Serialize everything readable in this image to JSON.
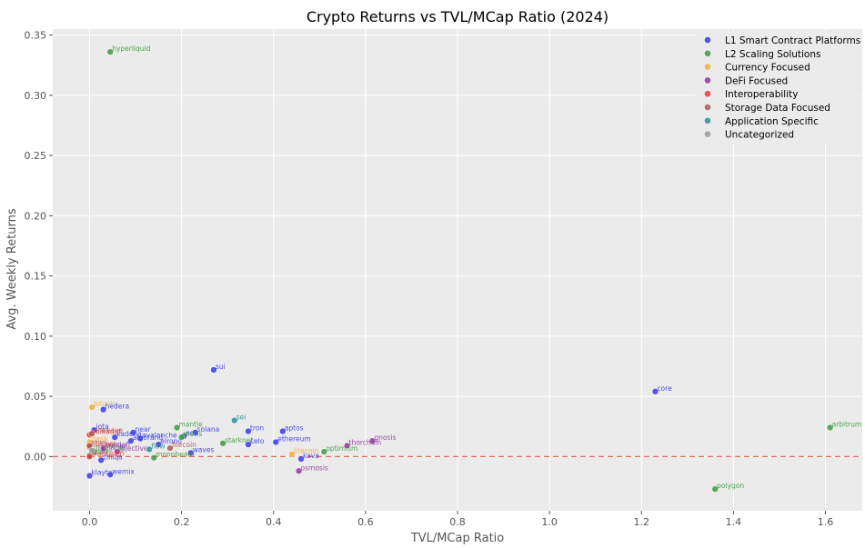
{
  "chart_data": {
    "type": "scatter",
    "title": "Crypto Returns vs TVL/MCap Ratio (2024)",
    "xlabel": "TVL/MCap Ratio",
    "ylabel": "Avg. Weekly Returns",
    "xlim": [
      -0.08,
      1.68
    ],
    "ylim": [
      -0.045,
      0.355
    ],
    "xticks": [
      "0.0",
      "0.2",
      "0.4",
      "0.6",
      "0.8",
      "1.0",
      "1.2",
      "1.4",
      "1.6"
    ],
    "xtick_values": [
      0,
      0.2,
      0.4,
      0.6,
      0.8,
      1.0,
      1.2,
      1.4,
      1.6
    ],
    "yticks": [
      "0.00",
      "0.05",
      "0.10",
      "0.15",
      "0.20",
      "0.25",
      "0.30",
      "0.35"
    ],
    "ytick_values": [
      0,
      0.05,
      0.1,
      0.15,
      0.2,
      0.25,
      0.3,
      0.35
    ],
    "grid": true,
    "legend_position": "top-right",
    "reference_line": {
      "y": 0,
      "style": "dashed",
      "color": "#e8685e"
    },
    "series": [
      {
        "name": "L1 Smart Contract Platforms",
        "color": "#3a3ae8",
        "points": [
          {
            "label": "sui",
            "x": 0.27,
            "y": 0.072
          },
          {
            "label": "core",
            "x": 1.23,
            "y": 0.054
          },
          {
            "label": "hedera",
            "x": 0.03,
            "y": 0.039
          },
          {
            "label": "solana",
            "x": 0.23,
            "y": 0.02
          },
          {
            "label": "tron",
            "x": 0.345,
            "y": 0.021
          },
          {
            "label": "aptos",
            "x": 0.42,
            "y": 0.021
          },
          {
            "label": "ethereum",
            "x": 0.405,
            "y": 0.012
          },
          {
            "label": "celo",
            "x": 0.345,
            "y": 0.01
          },
          {
            "label": "waves",
            "x": 0.22,
            "y": 0.003
          },
          {
            "label": "near",
            "x": 0.095,
            "y": 0.02
          },
          {
            "label": "elrond",
            "x": 0.15,
            "y": 0.01
          },
          {
            "label": "eos",
            "x": 0.205,
            "y": 0.017
          },
          {
            "label": "avalanche",
            "x": 0.11,
            "y": 0.015
          },
          {
            "label": "klaytn",
            "x": 0.0,
            "y": -0.016
          },
          {
            "label": "wemix",
            "x": 0.045,
            "y": -0.015
          },
          {
            "label": "kava",
            "x": 0.46,
            "y": -0.002
          },
          {
            "label": "zilliqa",
            "x": 0.025,
            "y": -0.003
          },
          {
            "label": "iota",
            "x": 0.01,
            "y": 0.022
          },
          {
            "label": "kadena",
            "x": 0.055,
            "y": 0.016
          },
          {
            "label": "stellar",
            "x": 0.03,
            "y": 0.006
          },
          {
            "label": "algorand",
            "x": 0.09,
            "y": 0.013
          }
        ]
      },
      {
        "name": "L2 Scaling Solutions",
        "color": "#3e9a3e",
        "points": [
          {
            "label": "hyperliquid",
            "x": 0.045,
            "y": 0.336
          },
          {
            "label": "arbitrum",
            "x": 1.61,
            "y": 0.024
          },
          {
            "label": "polygon",
            "x": 1.36,
            "y": -0.027
          },
          {
            "label": "mantle",
            "x": 0.19,
            "y": 0.024
          },
          {
            "label": "starknet",
            "x": 0.29,
            "y": 0.011
          },
          {
            "label": "optimism",
            "x": 0.51,
            "y": 0.004
          },
          {
            "label": "moonbeam",
            "x": 0.14,
            "y": -0.001
          },
          {
            "label": "metis",
            "x": 0.2,
            "y": 0.016
          },
          {
            "label": "loopring",
            "x": 0.01,
            "y": 0.004
          },
          {
            "label": "boba",
            "x": 0.0,
            "y": 0.001
          }
        ]
      },
      {
        "name": "Currency Focused",
        "color": "#f0b040",
        "points": [
          {
            "label": "bitcoin",
            "x": 0.005,
            "y": 0.041
          },
          {
            "label": "litecoin",
            "x": 0.44,
            "y": 0.002
          },
          {
            "label": "dash",
            "x": 0.0,
            "y": 0.012
          }
        ]
      },
      {
        "name": "DeFi Focused",
        "color": "#8e3a9e",
        "points": [
          {
            "label": "gnosis",
            "x": 0.615,
            "y": 0.013
          },
          {
            "label": "thorchain",
            "x": 0.56,
            "y": 0.009
          },
          {
            "label": "osmosis",
            "x": 0.455,
            "y": -0.012
          },
          {
            "label": "injective",
            "x": 0.06,
            "y": 0.004
          },
          {
            "label": "sei-defi",
            "x": 0.03,
            "y": 0.007
          }
        ]
      },
      {
        "name": "Interoperability",
        "color": "#e83a3a",
        "points": [
          {
            "label": "polkadot",
            "x": 0.0,
            "y": 0.018
          },
          {
            "label": "cosmos",
            "x": 0.0,
            "y": 0.008
          },
          {
            "label": "wanchain",
            "x": 0.0,
            "y": 0.0
          }
        ]
      },
      {
        "name": "Storage Data Focused",
        "color": "#b05858",
        "points": [
          {
            "label": "filecoin",
            "x": 0.175,
            "y": 0.007
          },
          {
            "label": "arweave",
            "x": 0.005,
            "y": 0.019
          },
          {
            "label": "storj",
            "x": 0.0,
            "y": 0.009
          }
        ]
      },
      {
        "name": "Application Specific",
        "color": "#2e8e96",
        "points": [
          {
            "label": "sei",
            "x": 0.315,
            "y": 0.03
          },
          {
            "label": "flow",
            "x": 0.13,
            "y": 0.006
          }
        ]
      },
      {
        "name": "Uncategorized",
        "color": "#9a9a9a",
        "points": [
          {
            "label": "others",
            "x": 0.005,
            "y": 0.005
          }
        ]
      }
    ]
  }
}
